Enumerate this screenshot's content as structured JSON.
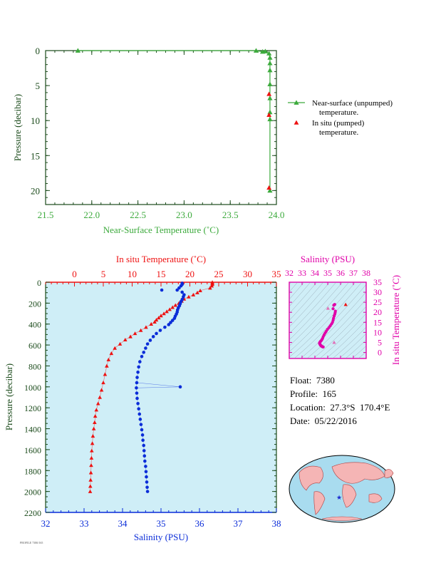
{
  "colors": {
    "green": "#3caa3c",
    "red": "#ee1111",
    "blue": "#0a2cd8",
    "magenta": "#e000a8",
    "panel_bg": "#cfeef7",
    "axis_dark": "#1a4a1a",
    "tiny_text": "#555555"
  },
  "float_info": {
    "float": "Float:  7380",
    "profile": "Profile:  165",
    "location": "Location:  27.3°S  170.4°E",
    "date": "Date:  05/22/2016"
  },
  "footer_note": "PROFILE 7380/165",
  "chart_data": [
    {
      "type": "line",
      "name": "near-surface-temperature",
      "xlabel": "Near-Surface Temperature (˚C)",
      "ylabel": "Pressure (decibar)",
      "xlim": [
        21.5,
        24.0
      ],
      "ylim": [
        0,
        22
      ],
      "y_inverted": true,
      "xticks": [
        "21.5",
        "22.0",
        "22.5",
        "23.0",
        "23.5",
        "24.0"
      ],
      "yticks": [
        "0",
        "5",
        "10",
        "15",
        "20"
      ],
      "legend": [
        "Near-surface (unpumped) temperature.",
        "In situ (pumped) temperature."
      ],
      "series": [
        {
          "name": "Near-surface (unpumped) temperature.",
          "color": "#3caa3c",
          "marker": "triangle",
          "points": [
            [
              21.85,
              0.0
            ],
            [
              23.78,
              0.0
            ],
            [
              23.85,
              0.15
            ],
            [
              23.88,
              0.1
            ],
            [
              23.92,
              0.4
            ],
            [
              23.93,
              1.0
            ],
            [
              23.93,
              1.8
            ],
            [
              23.93,
              2.8
            ],
            [
              23.93,
              4.8
            ],
            [
              23.93,
              6.8
            ],
            [
              23.93,
              8.8
            ],
            [
              23.93,
              9.8
            ],
            [
              23.93,
              20.0
            ]
          ]
        },
        {
          "name": "In situ (pumped) temperature.",
          "color": "#ee1111",
          "marker": "triangle",
          "points": [
            [
              23.92,
              6.2
            ],
            [
              23.92,
              9.2
            ],
            [
              23.92,
              19.6
            ]
          ]
        }
      ]
    },
    {
      "type": "scatter",
      "name": "temperature-salinity-profile",
      "xlabel_top": "In situ Temperature (˚C)",
      "xlabel_bottom": "Salinity (PSU)",
      "ylabel": "Pressure (decibar)",
      "temp_lim": [
        -5,
        35
      ],
      "sal_lim": [
        32,
        38
      ],
      "pressure_lim": [
        0,
        2200
      ],
      "y_inverted": true,
      "temp_ticks": [
        "0",
        "5",
        "10",
        "15",
        "20",
        "25",
        "30",
        "35"
      ],
      "sal_ticks": [
        "32",
        "33",
        "34",
        "35",
        "36",
        "37",
        "38"
      ],
      "pressure_ticks": [
        "0",
        "200",
        "400",
        "600",
        "800",
        "1000",
        "1200",
        "1400",
        "1600",
        "1800",
        "2000",
        "2200"
      ],
      "temperature": [
        [
          23.9,
          0
        ],
        [
          23.9,
          10
        ],
        [
          23.9,
          20
        ],
        [
          23.8,
          35
        ],
        [
          23.5,
          55
        ],
        [
          21.8,
          80
        ],
        [
          21.3,
          100
        ],
        [
          20.6,
          120
        ],
        [
          19.8,
          140
        ],
        [
          19.0,
          160
        ],
        [
          18.6,
          180
        ],
        [
          18.1,
          200
        ],
        [
          17.5,
          220
        ],
        [
          17.0,
          240
        ],
        [
          16.5,
          260
        ],
        [
          16.0,
          280
        ],
        [
          15.5,
          300
        ],
        [
          15.0,
          320
        ],
        [
          14.6,
          340
        ],
        [
          14.2,
          360
        ],
        [
          13.9,
          380
        ],
        [
          13.3,
          400
        ],
        [
          12.4,
          430
        ],
        [
          11.5,
          460
        ],
        [
          10.5,
          490
        ],
        [
          9.7,
          520
        ],
        [
          8.8,
          550
        ],
        [
          7.9,
          590
        ],
        [
          7.0,
          630
        ],
        [
          6.4,
          680
        ],
        [
          5.9,
          740
        ],
        [
          5.6,
          800
        ],
        [
          5.3,
          880
        ],
        [
          5.0,
          960
        ],
        [
          4.7,
          1030
        ],
        [
          4.4,
          1100
        ],
        [
          4.1,
          1160
        ],
        [
          3.8,
          1220
        ],
        [
          3.6,
          1280
        ],
        [
          3.5,
          1340
        ],
        [
          3.35,
          1400
        ],
        [
          3.2,
          1470
        ],
        [
          3.1,
          1540
        ],
        [
          3.0,
          1610
        ],
        [
          2.95,
          1680
        ],
        [
          2.9,
          1750
        ],
        [
          2.85,
          1820
        ],
        [
          2.8,
          1890
        ],
        [
          2.75,
          1950
        ],
        [
          2.72,
          2000
        ]
      ],
      "salinity": [
        [
          35.55,
          10
        ],
        [
          35.55,
          20
        ],
        [
          35.52,
          35
        ],
        [
          35.47,
          55
        ],
        [
          35.42,
          75
        ],
        [
          35.55,
          95
        ],
        [
          35.6,
          120
        ],
        [
          35.58,
          140
        ],
        [
          35.55,
          165
        ],
        [
          35.52,
          185
        ],
        [
          35.5,
          205
        ],
        [
          35.48,
          225
        ],
        [
          35.45,
          245
        ],
        [
          35.43,
          265
        ],
        [
          35.42,
          285
        ],
        [
          35.4,
          305
        ],
        [
          35.37,
          325
        ],
        [
          35.35,
          345
        ],
        [
          35.3,
          365
        ],
        [
          35.25,
          385
        ],
        [
          35.2,
          405
        ],
        [
          35.1,
          430
        ],
        [
          34.98,
          460
        ],
        [
          34.88,
          490
        ],
        [
          34.8,
          520
        ],
        [
          34.72,
          555
        ],
        [
          34.65,
          590
        ],
        [
          34.6,
          630
        ],
        [
          34.55,
          670
        ],
        [
          34.5,
          710
        ],
        [
          34.45,
          760
        ],
        [
          34.42,
          810
        ],
        [
          34.4,
          860
        ],
        [
          34.38,
          910
        ],
        [
          34.37,
          960
        ],
        [
          34.36,
          1010
        ],
        [
          34.37,
          1060
        ],
        [
          34.38,
          1110
        ],
        [
          34.4,
          1160
        ],
        [
          34.42,
          1210
        ],
        [
          34.44,
          1260
        ],
        [
          34.46,
          1310
        ],
        [
          34.48,
          1360
        ],
        [
          34.5,
          1410
        ],
        [
          34.52,
          1460
        ],
        [
          34.53,
          1510
        ],
        [
          34.55,
          1560
        ],
        [
          34.56,
          1610
        ],
        [
          34.57,
          1660
        ],
        [
          34.58,
          1710
        ],
        [
          34.6,
          1760
        ],
        [
          34.61,
          1810
        ],
        [
          34.62,
          1860
        ],
        [
          34.63,
          1910
        ],
        [
          34.64,
          1960
        ],
        [
          34.65,
          2000
        ]
      ],
      "salinity_outliers": [
        [
          35.02,
          75
        ],
        [
          35.5,
          1000
        ]
      ]
    },
    {
      "type": "scatter",
      "name": "ts-diagram",
      "xlabel": "Salinity (PSU)",
      "ylabel": "In situ Temperature (˚C)",
      "xlim": [
        32,
        38
      ],
      "ylim": [
        -3,
        35
      ],
      "xticks": [
        "32",
        "33",
        "34",
        "35",
        "36",
        "37",
        "38"
      ],
      "yticks": [
        "0",
        "5",
        "10",
        "15",
        "20",
        "25",
        "30",
        "35"
      ],
      "points": [
        [
          35.55,
          23.9
        ],
        [
          35.52,
          23.8
        ],
        [
          35.47,
          23.5
        ],
        [
          35.42,
          21.8
        ],
        [
          35.6,
          20.6
        ],
        [
          35.58,
          19.8
        ],
        [
          35.55,
          19.0
        ],
        [
          35.5,
          18.1
        ],
        [
          35.45,
          17.0
        ],
        [
          35.42,
          16.0
        ],
        [
          35.37,
          15.0
        ],
        [
          35.3,
          14.2
        ],
        [
          35.2,
          13.3
        ],
        [
          35.1,
          12.4
        ],
        [
          34.98,
          11.5
        ],
        [
          34.88,
          10.5
        ],
        [
          34.8,
          9.7
        ],
        [
          34.72,
          8.8
        ],
        [
          34.65,
          7.9
        ],
        [
          34.6,
          7.0
        ],
        [
          34.55,
          6.4
        ],
        [
          34.5,
          5.9
        ],
        [
          34.45,
          5.6
        ],
        [
          34.42,
          5.3
        ],
        [
          34.38,
          5.0
        ],
        [
          34.36,
          4.7
        ],
        [
          34.37,
          4.4
        ],
        [
          34.4,
          4.1
        ],
        [
          34.42,
          3.8
        ],
        [
          34.44,
          3.6
        ],
        [
          34.48,
          3.35
        ],
        [
          34.52,
          3.1
        ],
        [
          34.55,
          3.0
        ],
        [
          34.58,
          2.9
        ],
        [
          34.61,
          2.8
        ],
        [
          34.65,
          2.72
        ]
      ],
      "outliers": [
        [
          35.02,
          22.0
        ],
        [
          35.5,
          5.0
        ],
        [
          36.4,
          23.9
        ]
      ]
    }
  ]
}
